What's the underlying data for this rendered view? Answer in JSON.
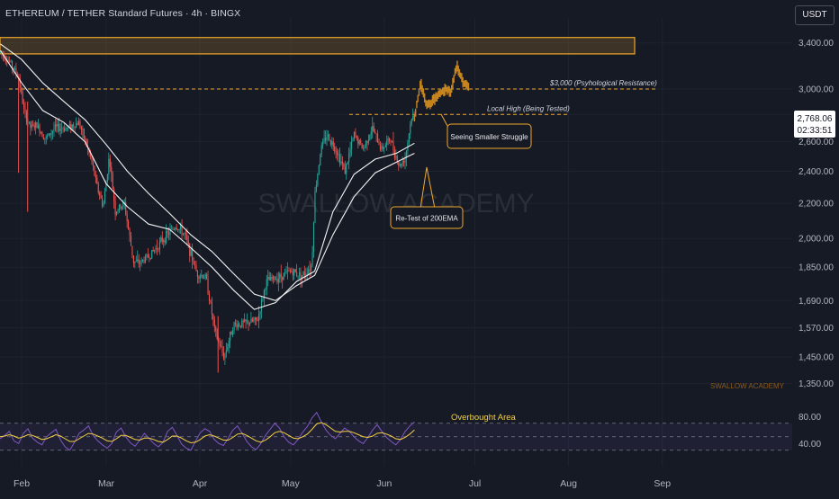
{
  "header": {
    "title": "ETHEREUM / TETHER Standard Futures · 4h · BINGX",
    "currency_label": "USDT"
  },
  "price_tag": {
    "price": "2,768.06",
    "countdown": "02:33:51"
  },
  "watermark": "SWALLOW ACADEMY",
  "small_watermark": "SWALLOW ACADEMY",
  "colors": {
    "background": "#161a25",
    "up_candle": "#26a69a",
    "down_candle": "#ef5350",
    "ema_line": "#ffffff",
    "annotation": "#f0a62a",
    "projection": "#c8871f",
    "rsi_line": "#7e57c2",
    "rsi_signal": "#f4d03f",
    "price_tag_bg": "#ffffff"
  },
  "annotations": [
    {
      "id": "psych",
      "text": "$3,000 (Psyhological Resistance)"
    },
    {
      "id": "localhigh",
      "text": "Local High (Being Tested)"
    },
    {
      "id": "struggle",
      "text": "Seeing Smaller Struggle"
    },
    {
      "id": "retest",
      "text": "Re-Test of 200EMA"
    },
    {
      "id": "overbought",
      "text": "Overbought Area"
    }
  ],
  "chart_data": [
    {
      "type": "candlestick",
      "title": "ETHEREUM / TETHER Standard Futures · 4h · BINGX",
      "ylim": [
        1290,
        3550
      ],
      "y_scale": "log",
      "y_ticks": [
        "3,400.00",
        "3,000.00",
        "2,800.00",
        "2,600.00",
        "2,400.00",
        "2,200.00",
        "2,000.00",
        "1,850.00",
        "1,690.00",
        "1,570.00",
        "1,450.00",
        "1,350.00"
      ],
      "x_ticks": [
        "Feb",
        "Mar",
        "Apr",
        "May",
        "Jun",
        "Jul",
        "Aug",
        "Sep"
      ],
      "price_path": [
        [
          "2025-01-25",
          3320
        ],
        [
          "2025-01-28",
          3230
        ],
        [
          "2025-01-31",
          3100
        ],
        [
          "2025-02-02",
          2800
        ],
        [
          "2025-02-04",
          2700
        ],
        [
          "2025-02-06",
          2720
        ],
        [
          "2025-02-09",
          2620
        ],
        [
          "2025-02-12",
          2700
        ],
        [
          "2025-02-16",
          2700
        ],
        [
          "2025-02-20",
          2740
        ],
        [
          "2025-02-24",
          2480
        ],
        [
          "2025-02-26",
          2300
        ],
        [
          "2025-02-28",
          2180
        ],
        [
          "2025-03-02",
          2500
        ],
        [
          "2025-03-04",
          2150
        ],
        [
          "2025-03-07",
          2200
        ],
        [
          "2025-03-10",
          1880
        ],
        [
          "2025-03-12",
          1870
        ],
        [
          "2025-03-16",
          1920
        ],
        [
          "2025-03-20",
          2000
        ],
        [
          "2025-03-24",
          2070
        ],
        [
          "2025-03-27",
          2020
        ],
        [
          "2025-03-31",
          1820
        ],
        [
          "2025-04-03",
          1800
        ],
        [
          "2025-04-06",
          1550
        ],
        [
          "2025-04-09",
          1450
        ],
        [
          "2025-04-12",
          1580
        ],
        [
          "2025-04-16",
          1590
        ],
        [
          "2025-04-20",
          1600
        ],
        [
          "2025-04-23",
          1780
        ],
        [
          "2025-04-27",
          1800
        ],
        [
          "2025-05-01",
          1830
        ],
        [
          "2025-05-05",
          1810
        ],
        [
          "2025-05-08",
          1860
        ],
        [
          "2025-05-09",
          2250
        ],
        [
          "2025-05-11",
          2550
        ],
        [
          "2025-05-13",
          2650
        ],
        [
          "2025-05-16",
          2550
        ],
        [
          "2025-05-19",
          2400
        ],
        [
          "2025-05-22",
          2650
        ],
        [
          "2025-05-25",
          2550
        ],
        [
          "2025-05-28",
          2700
        ],
        [
          "2025-05-31",
          2550
        ],
        [
          "2025-06-03",
          2620
        ],
        [
          "2025-06-06",
          2430
        ],
        [
          "2025-06-08",
          2500
        ],
        [
          "2025-06-10",
          2780
        ],
        [
          "2025-06-11",
          2768
        ]
      ],
      "projection_path": [
        [
          "2025-06-11",
          2768
        ],
        [
          "2025-06-13",
          3050
        ],
        [
          "2025-06-15",
          2870
        ],
        [
          "2025-06-17",
          2900
        ],
        [
          "2025-06-19",
          2950
        ],
        [
          "2025-06-21",
          3000
        ],
        [
          "2025-06-23",
          2980
        ],
        [
          "2025-06-25",
          3200
        ],
        [
          "2025-06-27",
          3050
        ],
        [
          "2025-06-29",
          3020
        ]
      ],
      "ema_fast": [
        [
          "2025-01-25",
          3330
        ],
        [
          "2025-02-01",
          3050
        ],
        [
          "2025-02-08",
          2830
        ],
        [
          "2025-02-15",
          2740
        ],
        [
          "2025-02-22",
          2600
        ],
        [
          "2025-03-01",
          2320
        ],
        [
          "2025-03-08",
          2180
        ],
        [
          "2025-03-15",
          2080
        ],
        [
          "2025-03-22",
          2050
        ],
        [
          "2025-03-29",
          1950
        ],
        [
          "2025-04-05",
          1850
        ],
        [
          "2025-04-12",
          1740
        ],
        [
          "2025-04-19",
          1650
        ],
        [
          "2025-04-26",
          1680
        ],
        [
          "2025-05-03",
          1780
        ],
        [
          "2025-05-09",
          1830
        ],
        [
          "2025-05-15",
          2150
        ],
        [
          "2025-05-22",
          2380
        ],
        [
          "2025-05-29",
          2480
        ],
        [
          "2025-06-05",
          2520
        ],
        [
          "2025-06-11",
          2590
        ]
      ],
      "ema_slow": [
        [
          "2025-01-25",
          3390
        ],
        [
          "2025-02-01",
          3250
        ],
        [
          "2025-02-08",
          3050
        ],
        [
          "2025-02-15",
          2900
        ],
        [
          "2025-02-22",
          2760
        ],
        [
          "2025-03-01",
          2580
        ],
        [
          "2025-03-08",
          2400
        ],
        [
          "2025-03-15",
          2260
        ],
        [
          "2025-03-22",
          2140
        ],
        [
          "2025-03-29",
          2020
        ],
        [
          "2025-04-05",
          1930
        ],
        [
          "2025-04-12",
          1820
        ],
        [
          "2025-04-19",
          1720
        ],
        [
          "2025-04-26",
          1690
        ],
        [
          "2025-05-03",
          1760
        ],
        [
          "2025-05-09",
          1810
        ],
        [
          "2025-05-15",
          2020
        ],
        [
          "2025-05-22",
          2240
        ],
        [
          "2025-05-29",
          2390
        ],
        [
          "2025-06-05",
          2460
        ],
        [
          "2025-06-11",
          2520
        ]
      ],
      "resistance_zone": [
        3300,
        3450
      ],
      "horizontal_levels": [
        {
          "label": "$3,000 (Psyhological Resistance)",
          "price": 3000
        },
        {
          "label": "Local High (Being Tested)",
          "price": 2800
        }
      ]
    },
    {
      "type": "line",
      "title": "RSI",
      "ylim": [
        15,
        95
      ],
      "y_ticks": [
        "80.00",
        "40.00"
      ],
      "levels": [
        70,
        50,
        30
      ],
      "series": [
        {
          "values": [
            47,
            52,
            58,
            44,
            40,
            55,
            62,
            48,
            42,
            38,
            50,
            56,
            61,
            45,
            35,
            30,
            42,
            55,
            60,
            66,
            52,
            44,
            38,
            33,
            40,
            57,
            63,
            50,
            41,
            36,
            45,
            55,
            48,
            40,
            35,
            42,
            58,
            64,
            52,
            39,
            33,
            30,
            44,
            56,
            62,
            58,
            46,
            40,
            37,
            48,
            60,
            66,
            55,
            43,
            35,
            31,
            40,
            52,
            61,
            70,
            63,
            50,
            42,
            38,
            46,
            57,
            65,
            78,
            86,
            72,
            60,
            52,
            47,
            55,
            63,
            58,
            50,
            44,
            40,
            49,
            60,
            68,
            58,
            49,
            43,
            38,
            46,
            58,
            66,
            72
          ]
        },
        {
          "values": [
            50,
            51,
            53,
            51,
            48,
            50,
            53,
            52,
            49,
            46,
            47,
            50,
            53,
            51,
            47,
            43,
            43,
            47,
            51,
            55,
            54,
            51,
            48,
            44,
            43,
            47,
            52,
            52,
            49,
            46,
            45,
            48,
            48,
            46,
            43,
            42,
            46,
            51,
            51,
            48,
            44,
            41,
            42,
            46,
            51,
            53,
            51,
            48,
            45,
            45,
            49,
            54,
            55,
            52,
            48,
            44,
            42,
            45,
            50,
            56,
            58,
            56,
            52,
            48,
            47,
            50,
            54,
            61,
            69,
            71,
            68,
            63,
            58,
            57,
            58,
            58,
            56,
            53,
            50,
            49,
            51,
            55,
            56,
            54,
            51,
            47,
            46,
            49,
            54,
            60
          ]
        }
      ]
    }
  ]
}
